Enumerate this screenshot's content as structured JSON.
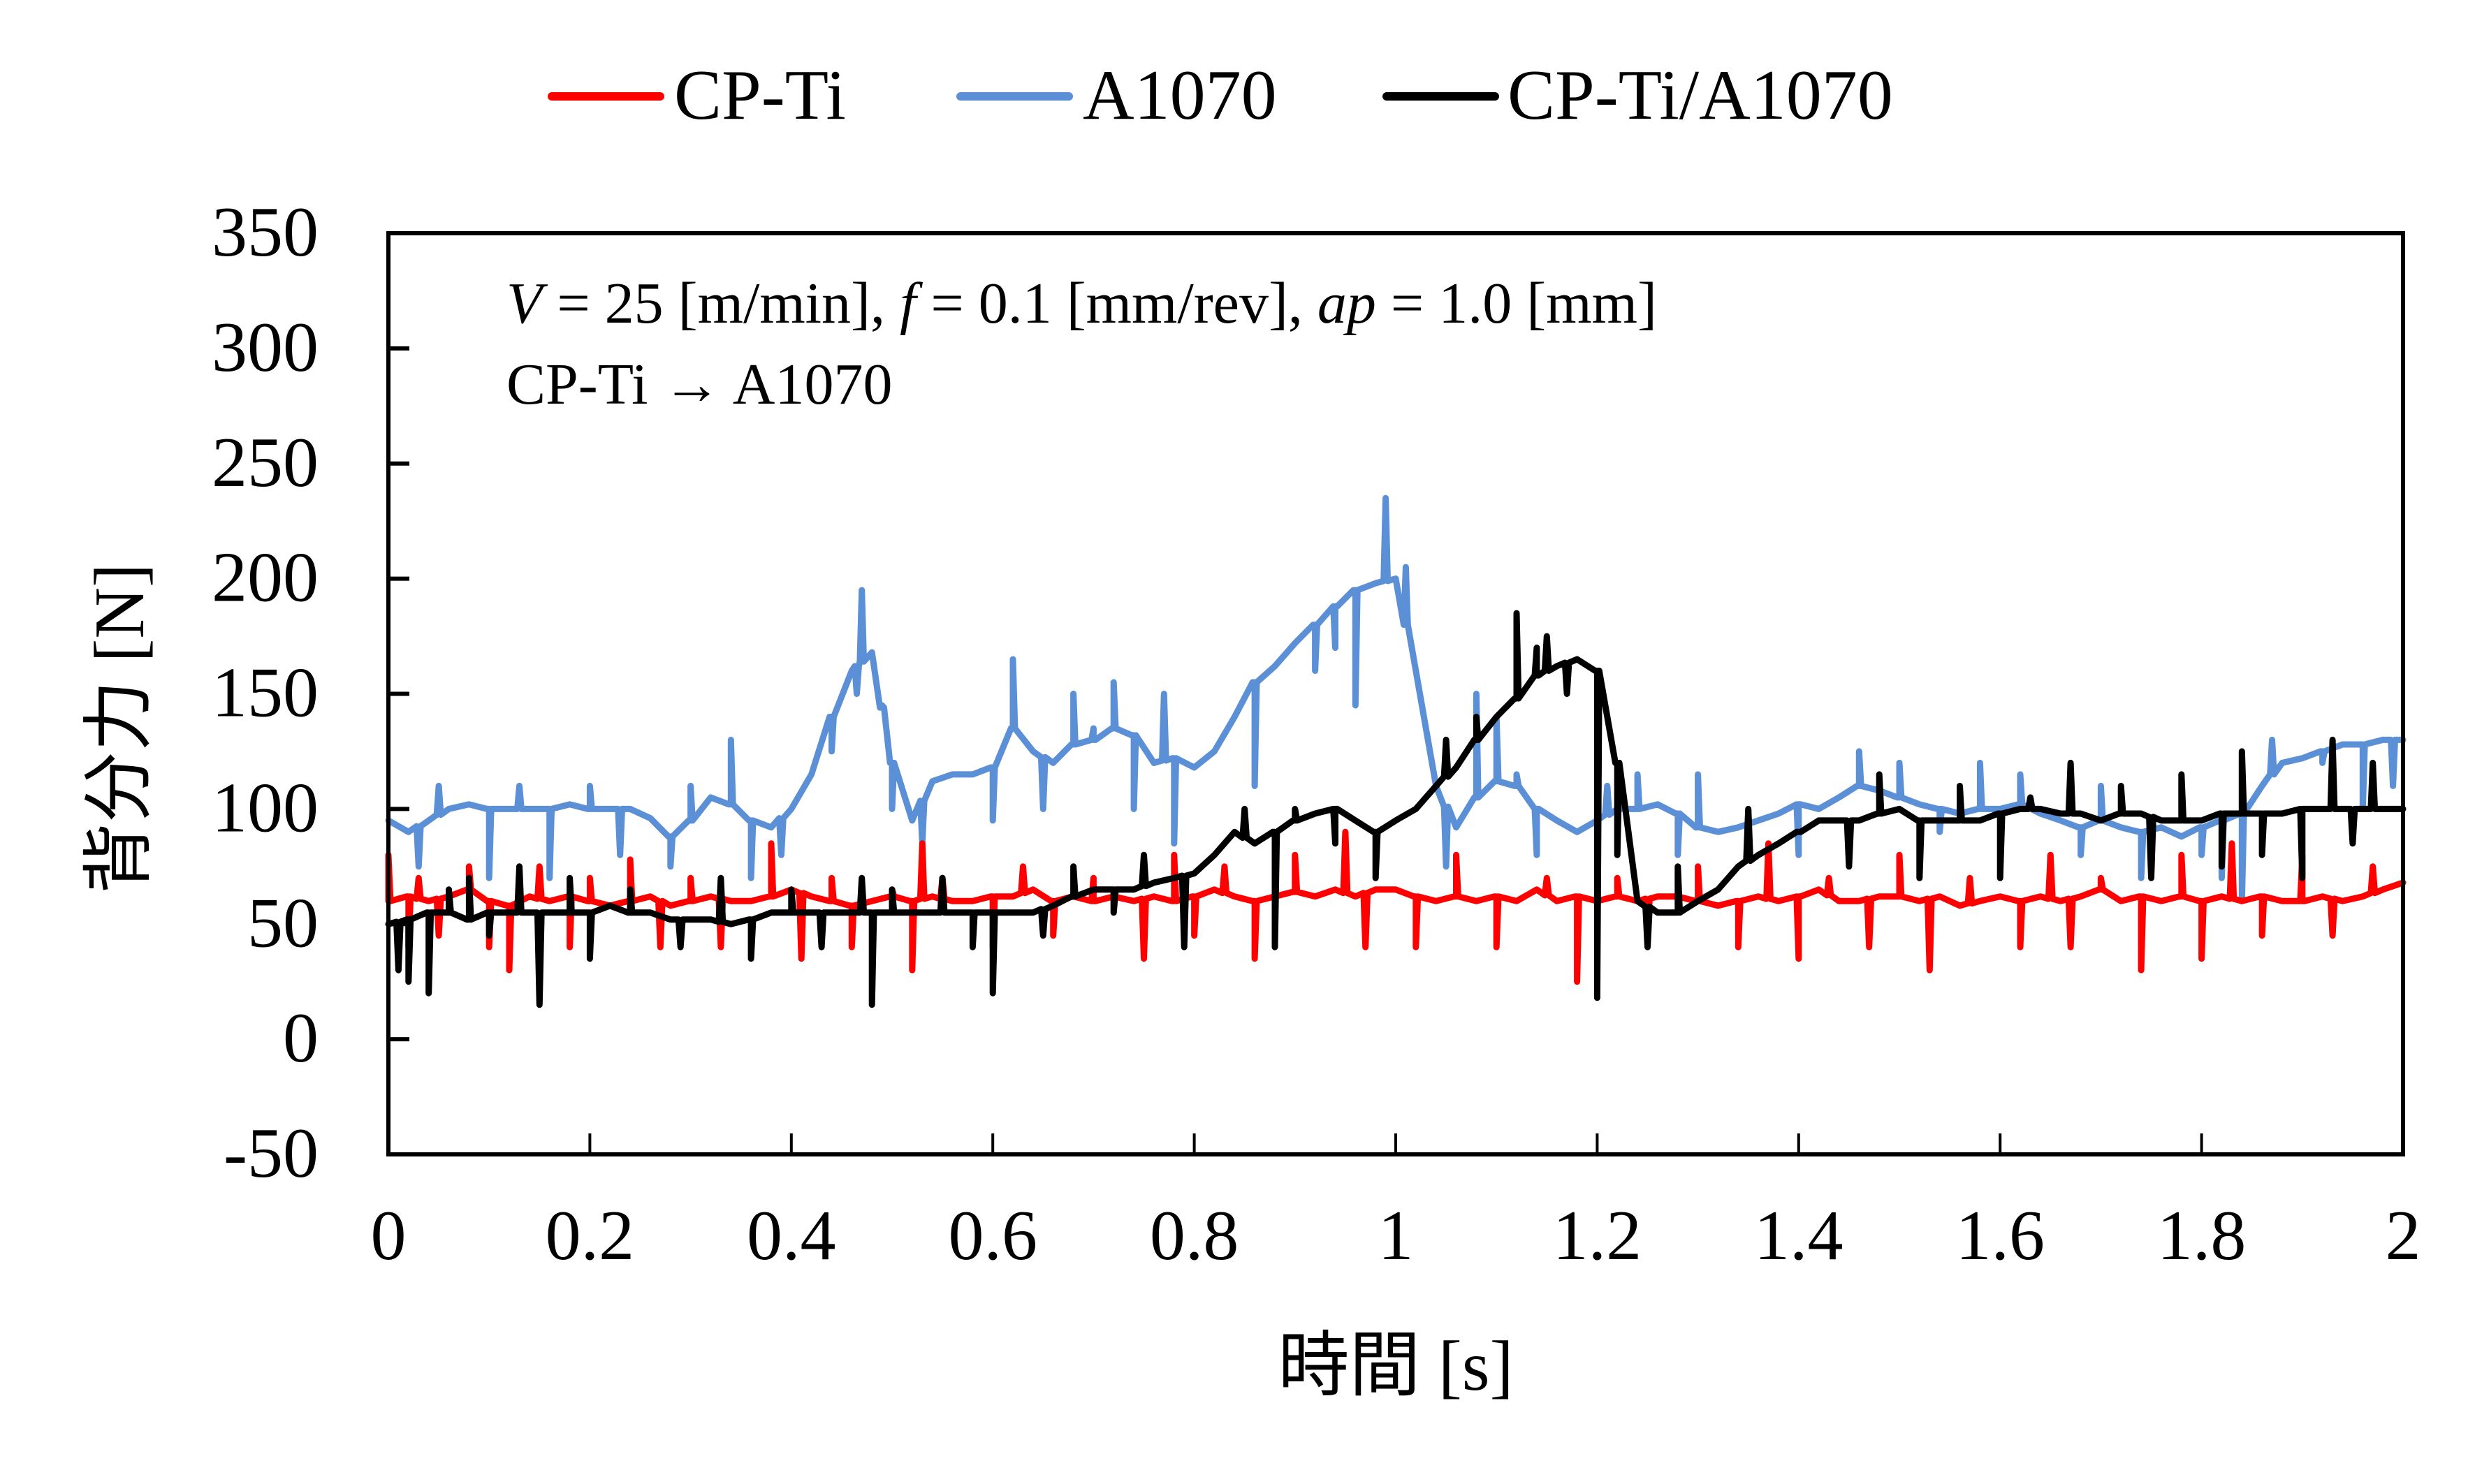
{
  "chart_data": {
    "type": "line",
    "title": "",
    "xlabel": "時間 [s]",
    "ylabel": "背分力 [N]",
    "xlim": [
      0,
      2
    ],
    "ylim": [
      -50,
      350
    ],
    "x_ticks": [
      0,
      0.2,
      0.4,
      0.6,
      0.8,
      1,
      1.2,
      1.4,
      1.6,
      1.8,
      2
    ],
    "x_tick_labels": [
      "0",
      "0.2",
      "0.4",
      "0.6",
      "0.8",
      "1",
      "1.2",
      "1.4",
      "1.6",
      "1.8",
      "2"
    ],
    "y_ticks": [
      -50,
      0,
      50,
      100,
      150,
      200,
      250,
      300,
      350
    ],
    "y_tick_labels": [
      "-50",
      "0",
      "50",
      "100",
      "150",
      "200",
      "250",
      "300",
      "350"
    ],
    "grid": false,
    "legend_position": "top-center",
    "annotations": [
      {
        "parts": [
          {
            "text": "V",
            "italic": true
          },
          {
            "text": " = 25 [m/min], ",
            "italic": false
          },
          {
            "text": "f",
            "italic": true
          },
          {
            "text": " = 0.1 [mm/rev], ",
            "italic": false
          },
          {
            "text": "ap",
            "italic": true
          },
          {
            "text": " = 1.0 [mm]",
            "italic": false
          }
        ]
      },
      {
        "parts": [
          {
            "text": "CP-Ti → A1070",
            "italic": false
          }
        ]
      }
    ],
    "x_step": 0.02,
    "series": [
      {
        "name": "A1070",
        "color": "#5B8FD6",
        "values": [
          95,
          90,
          95,
          100,
          102,
          100,
          100,
          100,
          100,
          102,
          100,
          100,
          100,
          96,
          88,
          95,
          105,
          102,
          95,
          92,
          100,
          115,
          140,
          160,
          168,
          120,
          95,
          112,
          115,
          115,
          118,
          135,
          125,
          120,
          128,
          130,
          135,
          132,
          120,
          122,
          118,
          125,
          140,
          155,
          162,
          172,
          180,
          188,
          195,
          198,
          200,
          160,
          110,
          92,
          105,
          112,
          110,
          100,
          95,
          90,
          95,
          100,
          100,
          102,
          98,
          92,
          90,
          92,
          95,
          98,
          102,
          100,
          105,
          110,
          108,
          105,
          102,
          100,
          98,
          100,
          100,
          102,
          98,
          95,
          92,
          95,
          92,
          90,
          92,
          88,
          92,
          95,
          98,
          110,
          120,
          122,
          125,
          128,
          128,
          130,
          130
        ],
        "spikes": [
          [
            0.03,
            75
          ],
          [
            0.05,
            110
          ],
          [
            0.1,
            70
          ],
          [
            0.13,
            110
          ],
          [
            0.16,
            70
          ],
          [
            0.2,
            110
          ],
          [
            0.23,
            80
          ],
          [
            0.28,
            75
          ],
          [
            0.3,
            110
          ],
          [
            0.34,
            130
          ],
          [
            0.36,
            70
          ],
          [
            0.39,
            80
          ],
          [
            0.44,
            125
          ],
          [
            0.47,
            195
          ],
          [
            0.465,
            150
          ],
          [
            0.49,
            145
          ],
          [
            0.5,
            100
          ],
          [
            0.53,
            85
          ],
          [
            0.6,
            95
          ],
          [
            0.62,
            165
          ],
          [
            0.65,
            100
          ],
          [
            0.68,
            150
          ],
          [
            0.7,
            135
          ],
          [
            0.72,
            155
          ],
          [
            0.74,
            100
          ],
          [
            0.77,
            150
          ],
          [
            0.78,
            85
          ],
          [
            0.86,
            110
          ],
          [
            0.92,
            160
          ],
          [
            0.94,
            170
          ],
          [
            0.96,
            145
          ],
          [
            0.99,
            235
          ],
          [
            1.01,
            205
          ],
          [
            1.05,
            75
          ],
          [
            1.08,
            150
          ],
          [
            1.1,
            140
          ],
          [
            1.12,
            115
          ],
          [
            1.14,
            80
          ],
          [
            1.21,
            110
          ],
          [
            1.24,
            115
          ],
          [
            1.28,
            80
          ],
          [
            1.3,
            115
          ],
          [
            1.4,
            80
          ],
          [
            1.46,
            125
          ],
          [
            1.5,
            120
          ],
          [
            1.54,
            90
          ],
          [
            1.58,
            120
          ],
          [
            1.62,
            115
          ],
          [
            1.68,
            80
          ],
          [
            1.7,
            110
          ],
          [
            1.74,
            70
          ],
          [
            1.8,
            80
          ],
          [
            1.82,
            70
          ],
          [
            1.84,
            60
          ],
          [
            1.87,
            130
          ],
          [
            1.92,
            120
          ],
          [
            1.96,
            100
          ],
          [
            1.99,
            110
          ]
        ]
      },
      {
        "name": "CP-Ti",
        "color": "#FF0000",
        "values": [
          60,
          62,
          60,
          62,
          65,
          60,
          58,
          62,
          60,
          62,
          60,
          58,
          60,
          62,
          58,
          60,
          62,
          60,
          60,
          62,
          65,
          62,
          60,
          58,
          60,
          62,
          60,
          62,
          60,
          60,
          62,
          62,
          65,
          60,
          62,
          60,
          62,
          60,
          62,
          60,
          62,
          65,
          62,
          60,
          62,
          64,
          62,
          65,
          62,
          65,
          65,
          62,
          60,
          62,
          60,
          62,
          60,
          65,
          60,
          62,
          60,
          62,
          60,
          62,
          62,
          60,
          58,
          60,
          62,
          60,
          62,
          65,
          60,
          60,
          62,
          62,
          60,
          62,
          58,
          60,
          62,
          60,
          62,
          60,
          62,
          65,
          60,
          62,
          60,
          62,
          60,
          62,
          60,
          62,
          60,
          60,
          62,
          60,
          62,
          65,
          68
        ],
        "spikes": [
          [
            0,
            80
          ],
          [
            0.02,
            40
          ],
          [
            0.03,
            70
          ],
          [
            0.05,
            45
          ],
          [
            0.08,
            75
          ],
          [
            0.1,
            40
          ],
          [
            0.12,
            30
          ],
          [
            0.15,
            75
          ],
          [
            0.18,
            40
          ],
          [
            0.2,
            70
          ],
          [
            0.24,
            78
          ],
          [
            0.27,
            40
          ],
          [
            0.3,
            70
          ],
          [
            0.33,
            40
          ],
          [
            0.38,
            85
          ],
          [
            0.41,
            35
          ],
          [
            0.44,
            70
          ],
          [
            0.46,
            40
          ],
          [
            0.5,
            65
          ],
          [
            0.52,
            30
          ],
          [
            0.53,
            85
          ],
          [
            0.55,
            70
          ],
          [
            0.6,
            40
          ],
          [
            0.63,
            75
          ],
          [
            0.66,
            45
          ],
          [
            0.7,
            70
          ],
          [
            0.75,
            35
          ],
          [
            0.78,
            80
          ],
          [
            0.8,
            45
          ],
          [
            0.83,
            75
          ],
          [
            0.86,
            35
          ],
          [
            0.9,
            80
          ],
          [
            0.95,
            90
          ],
          [
            0.97,
            40
          ],
          [
            1.02,
            40
          ],
          [
            1.06,
            80
          ],
          [
            1.1,
            40
          ],
          [
            1.15,
            70
          ],
          [
            1.18,
            25
          ],
          [
            1.22,
            70
          ],
          [
            1.25,
            45
          ],
          [
            1.3,
            75
          ],
          [
            1.34,
            40
          ],
          [
            1.37,
            85
          ],
          [
            1.4,
            35
          ],
          [
            1.43,
            70
          ],
          [
            1.47,
            40
          ],
          [
            1.5,
            80
          ],
          [
            1.53,
            30
          ],
          [
            1.57,
            70
          ],
          [
            1.62,
            40
          ],
          [
            1.65,
            80
          ],
          [
            1.67,
            40
          ],
          [
            1.7,
            70
          ],
          [
            1.74,
            30
          ],
          [
            1.78,
            80
          ],
          [
            1.8,
            35
          ],
          [
            1.83,
            85
          ],
          [
            1.86,
            45
          ],
          [
            1.9,
            80
          ],
          [
            1.93,
            45
          ],
          [
            1.97,
            75
          ]
        ]
      },
      {
        "name": "CP-Ti/A1070",
        "color": "#000000",
        "values": [
          50,
          52,
          55,
          55,
          52,
          55,
          55,
          55,
          55,
          55,
          55,
          58,
          55,
          55,
          52,
          52,
          52,
          50,
          52,
          55,
          55,
          55,
          55,
          55,
          55,
          55,
          55,
          55,
          55,
          55,
          55,
          55,
          55,
          58,
          62,
          65,
          65,
          65,
          68,
          70,
          72,
          80,
          90,
          85,
          90,
          95,
          98,
          100,
          95,
          90,
          95,
          100,
          110,
          118,
          130,
          140,
          148,
          158,
          162,
          165,
          160,
          120,
          60,
          55,
          55,
          60,
          65,
          75,
          80,
          85,
          90,
          95,
          95,
          95,
          98,
          100,
          95,
          95,
          95,
          95,
          98,
          100,
          100,
          98,
          98,
          95,
          98,
          98,
          95,
          95,
          95,
          98,
          98,
          98,
          98,
          100,
          100,
          100,
          100,
          100,
          100
        ],
        "spikes": [
          [
            0.01,
            30
          ],
          [
            0.02,
            25
          ],
          [
            0.04,
            20
          ],
          [
            0.06,
            65
          ],
          [
            0.08,
            70
          ],
          [
            0.1,
            45
          ],
          [
            0.13,
            75
          ],
          [
            0.15,
            15
          ],
          [
            0.18,
            70
          ],
          [
            0.2,
            35
          ],
          [
            0.24,
            65
          ],
          [
            0.29,
            40
          ],
          [
            0.33,
            70
          ],
          [
            0.36,
            35
          ],
          [
            0.4,
            65
          ],
          [
            0.43,
            40
          ],
          [
            0.47,
            70
          ],
          [
            0.48,
            15
          ],
          [
            0.5,
            65
          ],
          [
            0.55,
            70
          ],
          [
            0.58,
            40
          ],
          [
            0.6,
            20
          ],
          [
            0.65,
            45
          ],
          [
            0.68,
            75
          ],
          [
            0.72,
            55
          ],
          [
            0.75,
            80
          ],
          [
            0.79,
            40
          ],
          [
            0.85,
            100
          ],
          [
            0.88,
            40
          ],
          [
            0.9,
            100
          ],
          [
            0.94,
            85
          ],
          [
            0.98,
            70
          ],
          [
            1.05,
            130
          ],
          [
            1.08,
            140
          ],
          [
            1.12,
            185
          ],
          [
            1.14,
            170
          ],
          [
            1.15,
            175
          ],
          [
            1.17,
            150
          ],
          [
            1.2,
            18
          ],
          [
            1.22,
            80
          ],
          [
            1.25,
            40
          ],
          [
            1.28,
            75
          ],
          [
            1.35,
            100
          ],
          [
            1.4,
            90
          ],
          [
            1.45,
            75
          ],
          [
            1.48,
            115
          ],
          [
            1.52,
            70
          ],
          [
            1.56,
            110
          ],
          [
            1.6,
            70
          ],
          [
            1.63,
            105
          ],
          [
            1.67,
            120
          ],
          [
            1.72,
            110
          ],
          [
            1.75,
            70
          ],
          [
            1.78,
            115
          ],
          [
            1.82,
            75
          ],
          [
            1.84,
            125
          ],
          [
            1.86,
            80
          ],
          [
            1.9,
            70
          ],
          [
            1.93,
            130
          ],
          [
            1.95,
            85
          ],
          [
            1.97,
            120
          ]
        ]
      }
    ]
  },
  "legend": {
    "items": [
      {
        "label": "CP-Ti",
        "color": "#FF0000"
      },
      {
        "label": "A1070",
        "color": "#5B8FD6"
      },
      {
        "label": "CP-Ti/A1070",
        "color": "#000000"
      }
    ]
  }
}
